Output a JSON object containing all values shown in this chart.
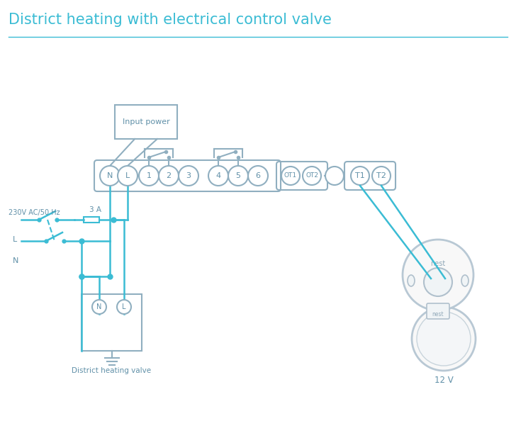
{
  "title": "District heating with electrical control valve",
  "title_color": "#3bbcd4",
  "title_fontsize": 15,
  "bg_color": "#ffffff",
  "line_color": "#3bbcd4",
  "box_color": "#90afc0",
  "text_color": "#6090a8",
  "terminal_labels": [
    "N",
    "L",
    "1",
    "2",
    "3",
    "4",
    "5",
    "6"
  ],
  "ot_labels": [
    "OT1",
    "OT2"
  ],
  "t_labels": [
    "T1",
    "T2"
  ],
  "fuse_label": "3 A",
  "input_power_label": "Input power",
  "district_label": "District heating valve",
  "nest_label": "12 V",
  "left_label_ac": "230V AC/50 Hz",
  "left_label_L": "L",
  "left_label_N": "N"
}
